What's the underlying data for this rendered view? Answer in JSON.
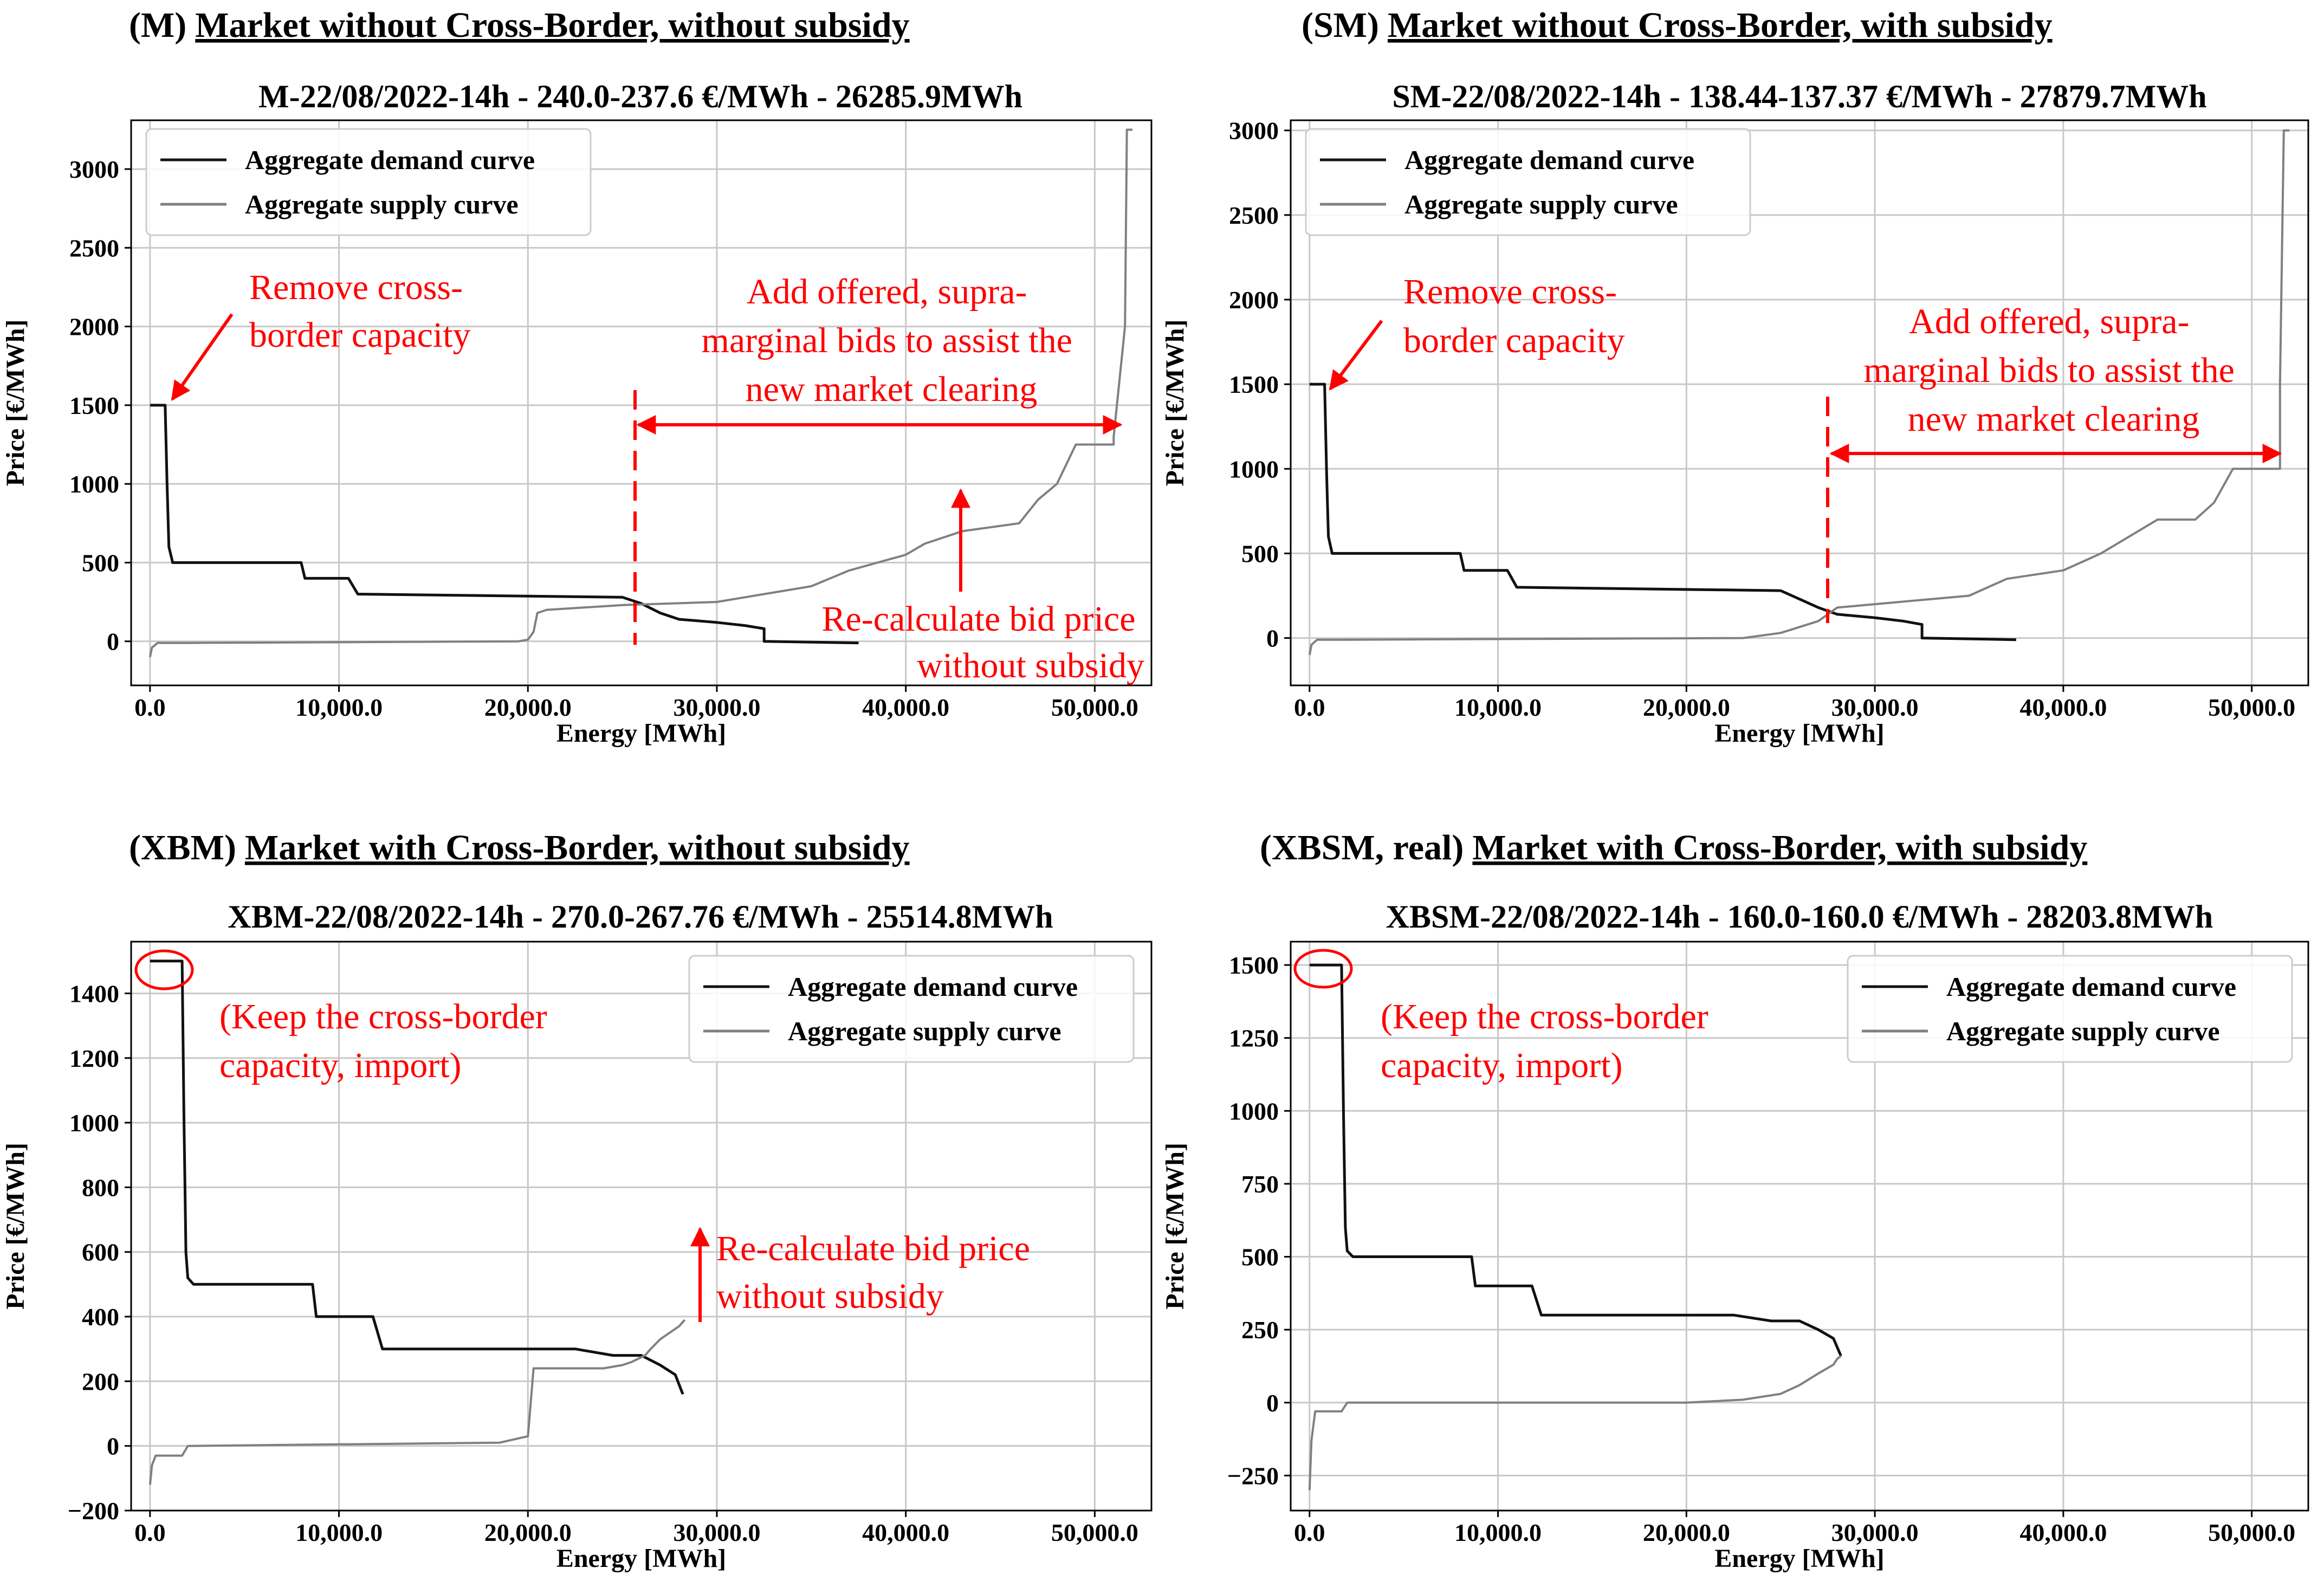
{
  "colors": {
    "demand": "#111111",
    "supply": "#808080",
    "annotation": "#ff0000"
  },
  "chart_data": [
    {
      "type": "line",
      "id": "M",
      "header_prefix": "(M)",
      "header_title": "Market without Cross-Border, without subsidy",
      "title": "M-22/08/2022-14h - 240.0-237.6 €/MWh - 26285.9MWh",
      "xlabel": "Energy [MWh]",
      "ylabel": "Price [€/MWh]",
      "xlim": [
        -1000,
        53000
      ],
      "ylim": [
        -280,
        3310
      ],
      "xticks": [
        0,
        10000,
        20000,
        30000,
        40000,
        50000
      ],
      "xtick_labels": [
        "0.0",
        "10,000.0",
        "20,000.0",
        "30,000.0",
        "40,000.0",
        "50,000.0"
      ],
      "yticks": [
        0,
        500,
        1000,
        1500,
        2000,
        2500,
        3000
      ],
      "ytick_labels": [
        "0",
        "500",
        "1000",
        "1500",
        "2000",
        "2500",
        "3000"
      ],
      "legend": [
        "Aggregate demand curve",
        "Aggregate supply curve"
      ],
      "legend_loc": "upper left",
      "series": [
        {
          "name": "Aggregate demand curve",
          "color": "#111111",
          "x": [
            0,
            800,
            900,
            950,
            1000,
            1200,
            1600,
            8000,
            8200,
            10500,
            11000,
            25000,
            26000,
            27000,
            28000,
            30000,
            31500,
            32500,
            32500,
            37500
          ],
          "y": [
            1500,
            1500,
            1000,
            800,
            600,
            500,
            500,
            500,
            400,
            400,
            300,
            280,
            240,
            180,
            140,
            120,
            100,
            80,
            0,
            -10
          ]
        },
        {
          "name": "Aggregate supply curve",
          "color": "#808080",
          "x": [
            0,
            100,
            400,
            2000,
            19500,
            20000,
            20300,
            20500,
            21000,
            25000,
            30000,
            35000,
            37000,
            40000,
            41000,
            43000,
            46000,
            47000,
            48000,
            49000,
            51000,
            51000,
            51600,
            51700,
            52000
          ],
          "y": [
            -100,
            -40,
            -10,
            -10,
            0,
            10,
            60,
            180,
            200,
            230,
            250,
            350,
            450,
            550,
            620,
            700,
            750,
            900,
            1000,
            1250,
            1250,
            1300,
            2000,
            3250,
            3250
          ]
        }
      ],
      "annotations": [
        {
          "lines": [
            "Remove cross-",
            "border capacity"
          ]
        },
        {
          "lines": [
            "Add offered, supra-",
            "marginal bids to assist the",
            "new market clearing"
          ]
        },
        {
          "lines": [
            "Re-calculate bid price",
            "without subsidy"
          ]
        }
      ]
    },
    {
      "type": "line",
      "id": "SM",
      "header_prefix": "(SM)",
      "header_title": "Market without Cross-Border, with subsidy",
      "title": "SM-22/08/2022-14h - 138.44-137.37 €/MWh - 27879.7MWh",
      "xlabel": "Energy [MWh]",
      "ylabel": "Price [€/MWh]",
      "xlim": [
        -1000,
        53000
      ],
      "ylim": [
        -280,
        3060
      ],
      "xticks": [
        0,
        10000,
        20000,
        30000,
        40000,
        50000
      ],
      "xtick_labels": [
        "0.0",
        "10,000.0",
        "20,000.0",
        "30,000.0",
        "40,000.0",
        "50,000.0"
      ],
      "yticks": [
        0,
        500,
        1000,
        1500,
        2000,
        2500,
        3000
      ],
      "ytick_labels": [
        "0",
        "500",
        "1000",
        "1500",
        "2000",
        "2500",
        "3000"
      ],
      "legend": [
        "Aggregate demand curve",
        "Aggregate supply curve"
      ],
      "legend_loc": "upper left",
      "series": [
        {
          "name": "Aggregate demand curve",
          "color": "#111111",
          "x": [
            0,
            800,
            900,
            950,
            1000,
            1200,
            1600,
            8000,
            8200,
            10500,
            11000,
            25000,
            26000,
            27000,
            28000,
            30000,
            31500,
            32500,
            32500,
            37500
          ],
          "y": [
            1500,
            1500,
            1000,
            800,
            600,
            500,
            500,
            500,
            400,
            400,
            300,
            280,
            230,
            180,
            140,
            120,
            100,
            80,
            0,
            -10
          ]
        },
        {
          "name": "Aggregate supply curve",
          "color": "#808080",
          "x": [
            0,
            100,
            400,
            2000,
            23000,
            25000,
            27000,
            28000,
            30000,
            35000,
            37000,
            40000,
            42000,
            45000,
            47000,
            48000,
            49000,
            51500,
            51500,
            51700,
            52000
          ],
          "y": [
            -100,
            -40,
            -10,
            -10,
            0,
            30,
            100,
            180,
            200,
            250,
            350,
            400,
            500,
            700,
            700,
            800,
            1000,
            1000,
            1500,
            3000,
            3000
          ]
        }
      ],
      "annotations": [
        {
          "lines": [
            "Remove cross-",
            "border capacity"
          ]
        },
        {
          "lines": [
            "Add offered, supra-",
            "marginal bids to assist the",
            "new market clearing"
          ]
        }
      ]
    },
    {
      "type": "line",
      "id": "XBM",
      "header_prefix": "(XBM)",
      "header_title": "Market with Cross-Border, without subsidy",
      "title": "XBM-22/08/2022-14h - 270.0-267.76 €/MWh - 25514.8MWh",
      "xlabel": "Energy [MWh]",
      "ylabel": "Price [€/MWh]",
      "xlim": [
        -1000,
        53000
      ],
      "ylim": [
        -200,
        1560
      ],
      "xticks": [
        0,
        10000,
        20000,
        30000,
        40000,
        50000
      ],
      "xtick_labels": [
        "0.0",
        "10,000.0",
        "20,000.0",
        "30,000.0",
        "40,000.0",
        "50,000.0"
      ],
      "yticks": [
        -200,
        0,
        200,
        400,
        600,
        800,
        1000,
        1200,
        1400
      ],
      "ytick_labels": [
        "−200",
        "0",
        "200",
        "400",
        "600",
        "800",
        "1000",
        "1200",
        "1400"
      ],
      "legend": [
        "Aggregate demand curve",
        "Aggregate supply curve"
      ],
      "legend_loc": "upper right",
      "series": [
        {
          "name": "Aggregate demand curve",
          "color": "#111111",
          "x": [
            0,
            1700,
            1800,
            1850,
            1900,
            2000,
            2300,
            8600,
            8800,
            11800,
            12300,
            22500,
            24500,
            26000,
            27000,
            27800,
            28000,
            28200
          ],
          "y": [
            1500,
            1500,
            1000,
            800,
            600,
            520,
            500,
            500,
            400,
            400,
            300,
            300,
            280,
            280,
            250,
            220,
            190,
            160
          ]
        },
        {
          "name": "Aggregate supply curve",
          "color": "#808080",
          "x": [
            0,
            100,
            300,
            1700,
            2000,
            18500,
            20000,
            20100,
            20300,
            24000,
            25000,
            25500,
            26200,
            26500,
            27000,
            28000,
            28300
          ],
          "y": [
            -120,
            -60,
            -30,
            -30,
            0,
            10,
            30,
            100,
            240,
            240,
            250,
            260,
            280,
            300,
            330,
            370,
            390
          ]
        }
      ],
      "annotations": [
        {
          "lines": [
            "(Keep the cross-border",
            "capacity, import)"
          ]
        },
        {
          "lines": [
            "Re-calculate bid price",
            "without subsidy"
          ]
        }
      ]
    },
    {
      "type": "line",
      "id": "XBSM",
      "header_prefix": "(XBSM, real)",
      "header_title": "Market with Cross-Border, with subsidy",
      "title": "XBSM-22/08/2022-14h - 160.0-160.0 €/MWh - 28203.8MWh",
      "xlabel": "Energy [MWh]",
      "ylabel": "Price [€/MWh]",
      "xlim": [
        -1000,
        53000
      ],
      "ylim": [
        -370,
        1580
      ],
      "xticks": [
        0,
        10000,
        20000,
        30000,
        40000,
        50000
      ],
      "xtick_labels": [
        "0.0",
        "10,000.0",
        "20,000.0",
        "30,000.0",
        "40,000.0",
        "50,000.0"
      ],
      "yticks": [
        -250,
        0,
        250,
        500,
        750,
        1000,
        1250,
        1500
      ],
      "ytick_labels": [
        "−250",
        "0",
        "250",
        "500",
        "750",
        "1000",
        "1250",
        "1500"
      ],
      "legend": [
        "Aggregate demand curve",
        "Aggregate supply curve"
      ],
      "legend_loc": "upper right",
      "series": [
        {
          "name": "Aggregate demand curve",
          "color": "#111111",
          "x": [
            0,
            1700,
            1800,
            1850,
            1900,
            2000,
            2300,
            8600,
            8800,
            11800,
            12300,
            22500,
            24500,
            26000,
            27000,
            27800,
            28000,
            28200
          ],
          "y": [
            1500,
            1500,
            1000,
            800,
            600,
            520,
            500,
            500,
            400,
            400,
            300,
            300,
            280,
            280,
            250,
            220,
            190,
            160
          ]
        },
        {
          "name": "Aggregate supply curve",
          "color": "#808080",
          "x": [
            0,
            100,
            300,
            1700,
            2000,
            20000,
            23000,
            25000,
            26000,
            27000,
            27800,
            28000,
            28200
          ],
          "y": [
            -300,
            -130,
            -30,
            -30,
            0,
            0,
            10,
            30,
            60,
            100,
            130,
            150,
            160
          ]
        }
      ],
      "annotations": [
        {
          "lines": [
            "(Keep the cross-border",
            "capacity, import)"
          ]
        }
      ]
    }
  ]
}
